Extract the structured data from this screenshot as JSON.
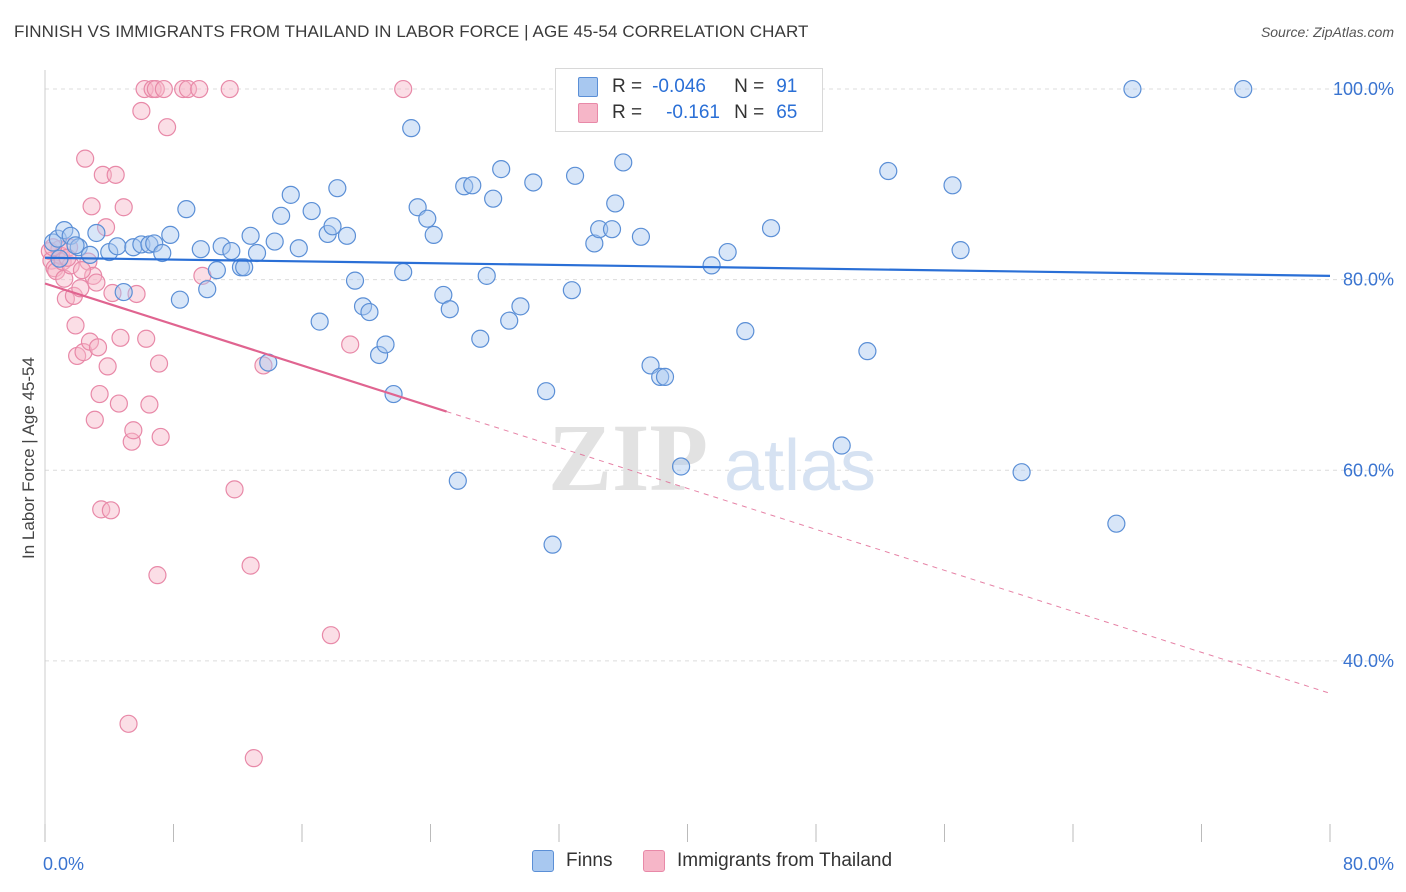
{
  "title": "FINNISH VS IMMIGRANTS FROM THAILAND IN LABOR FORCE | AGE 45-54 CORRELATION CHART",
  "source": "Source: ZipAtlas.com",
  "watermark": {
    "zip": "ZIP",
    "atlas": "atlas"
  },
  "legend": {
    "finns": {
      "r_label": "R =",
      "r_value": "-0.046",
      "n_label": "N =",
      "n_value": "91"
    },
    "thai": {
      "r_label": "R =",
      "r_value": "-0.161",
      "n_label": "N =",
      "n_value": "65"
    }
  },
  "bottom_legend": {
    "finns": "Finns",
    "thai": "Immigrants from Thailand"
  },
  "colors": {
    "finns_fill": "#a8c8f0",
    "finns_stroke": "#5b8fd6",
    "finns_line": "#2a6fd6",
    "thai_fill": "#f6b6c8",
    "thai_stroke": "#e889a8",
    "thai_line": "#e06490",
    "tick_label": "#3a74d0",
    "grid": "#dcdcdc"
  },
  "chart_data": {
    "type": "scatter",
    "xlabel": "",
    "ylabel": "In Labor Force | Age 45-54",
    "xlim": [
      0,
      80
    ],
    "ylim": [
      21,
      102
    ],
    "x_tick_labels": [
      {
        "value": 0,
        "label": "0.0%"
      },
      {
        "value": 80,
        "label": "80.0%"
      }
    ],
    "y_tick_labels": [
      {
        "value": 100,
        "label": "100.0%"
      },
      {
        "value": 80,
        "label": "80.0%"
      },
      {
        "value": 60,
        "label": "60.0%"
      },
      {
        "value": 40,
        "label": "40.0%"
      }
    ],
    "grid": true,
    "series": [
      {
        "name": "Finns",
        "trend": {
          "x0": 0,
          "y0": 82.3,
          "x1": 80,
          "y1": 80.4,
          "dashed_from": null
        },
        "points": [
          [
            0.5,
            83.9
          ],
          [
            0.8,
            84.3
          ],
          [
            1.2,
            85.2
          ],
          [
            1.6,
            84.6
          ],
          [
            2.1,
            83.4
          ],
          [
            2.8,
            82.6
          ],
          [
            3.2,
            84.9
          ],
          [
            4.0,
            82.9
          ],
          [
            4.5,
            83.5
          ],
          [
            4.9,
            78.7
          ],
          [
            5.5,
            83.4
          ],
          [
            6.0,
            83.7
          ],
          [
            6.5,
            83.7
          ],
          [
            6.8,
            83.8
          ],
          [
            7.3,
            82.8
          ],
          [
            7.8,
            84.7
          ],
          [
            8.4,
            77.9
          ],
          [
            8.8,
            87.4
          ],
          [
            9.7,
            83.2
          ],
          [
            10.1,
            79.0
          ],
          [
            10.7,
            81.0
          ],
          [
            11.0,
            83.5
          ],
          [
            11.6,
            83.0
          ],
          [
            12.2,
            81.3
          ],
          [
            12.4,
            81.3
          ],
          [
            12.8,
            84.6
          ],
          [
            13.2,
            82.8
          ],
          [
            13.9,
            71.3
          ],
          [
            14.3,
            84.0
          ],
          [
            14.7,
            86.7
          ],
          [
            15.3,
            88.9
          ],
          [
            15.8,
            83.3
          ],
          [
            16.6,
            87.2
          ],
          [
            17.1,
            75.6
          ],
          [
            17.6,
            84.8
          ],
          [
            17.9,
            85.6
          ],
          [
            18.2,
            89.6
          ],
          [
            18.8,
            84.6
          ],
          [
            19.3,
            79.9
          ],
          [
            19.8,
            77.2
          ],
          [
            20.2,
            76.6
          ],
          [
            20.8,
            72.1
          ],
          [
            21.2,
            73.2
          ],
          [
            21.7,
            68.0
          ],
          [
            22.3,
            80.8
          ],
          [
            22.8,
            95.9
          ],
          [
            23.2,
            87.6
          ],
          [
            23.8,
            86.4
          ],
          [
            24.2,
            84.7
          ],
          [
            24.8,
            78.4
          ],
          [
            25.2,
            76.9
          ],
          [
            25.7,
            58.9
          ],
          [
            26.1,
            89.8
          ],
          [
            26.6,
            89.9
          ],
          [
            27.1,
            73.8
          ],
          [
            27.5,
            80.4
          ],
          [
            27.9,
            88.5
          ],
          [
            28.4,
            91.6
          ],
          [
            28.9,
            75.7
          ],
          [
            29.6,
            77.2
          ],
          [
            30.4,
            90.2
          ],
          [
            31.2,
            68.3
          ],
          [
            31.6,
            52.2
          ],
          [
            32.8,
            78.9
          ],
          [
            33.0,
            90.9
          ],
          [
            34.2,
            83.8
          ],
          [
            34.5,
            85.3
          ],
          [
            35.3,
            85.3
          ],
          [
            35.5,
            88.0
          ],
          [
            36.0,
            92.3
          ],
          [
            37.1,
            84.5
          ],
          [
            37.7,
            71.0
          ],
          [
            38.3,
            69.8
          ],
          [
            38.6,
            69.8
          ],
          [
            39.6,
            60.4
          ],
          [
            41.0,
            100.0
          ],
          [
            41.5,
            81.5
          ],
          [
            42.5,
            82.9
          ],
          [
            43.6,
            74.6
          ],
          [
            45.2,
            85.4
          ],
          [
            49.6,
            62.6
          ],
          [
            51.2,
            72.5
          ],
          [
            52.5,
            91.4
          ],
          [
            56.5,
            89.9
          ],
          [
            57.0,
            83.1
          ],
          [
            60.8,
            59.8
          ],
          [
            66.7,
            54.4
          ],
          [
            67.7,
            100.0
          ],
          [
            74.6,
            100.0
          ],
          [
            0.9,
            82.2
          ],
          [
            1.9,
            83.6
          ]
        ]
      },
      {
        "name": "Immigrants from Thailand",
        "trend": {
          "x0": 0,
          "y0": 79.6,
          "x1": 80,
          "y1": 36.6,
          "dashed_from": 25
        },
        "points": [
          [
            0.3,
            83.0
          ],
          [
            0.4,
            82.0
          ],
          [
            0.6,
            81.2
          ],
          [
            0.7,
            80.9
          ],
          [
            0.9,
            83.2
          ],
          [
            1.0,
            82.5
          ],
          [
            1.1,
            81.9
          ],
          [
            1.2,
            80.1
          ],
          [
            1.3,
            78.0
          ],
          [
            1.5,
            83.4
          ],
          [
            1.6,
            81.5
          ],
          [
            1.8,
            78.3
          ],
          [
            1.9,
            75.2
          ],
          [
            2.0,
            72.0
          ],
          [
            2.2,
            79.1
          ],
          [
            2.4,
            72.4
          ],
          [
            2.5,
            92.7
          ],
          [
            2.7,
            81.9
          ],
          [
            2.8,
            73.5
          ],
          [
            2.9,
            87.7
          ],
          [
            3.0,
            80.4
          ],
          [
            3.1,
            65.3
          ],
          [
            3.2,
            79.7
          ],
          [
            3.3,
            72.9
          ],
          [
            3.4,
            68.0
          ],
          [
            3.5,
            55.9
          ],
          [
            3.6,
            91.0
          ],
          [
            3.8,
            85.5
          ],
          [
            3.9,
            70.9
          ],
          [
            4.1,
            55.8
          ],
          [
            4.2,
            78.6
          ],
          [
            4.4,
            91.0
          ],
          [
            4.6,
            67.0
          ],
          [
            4.7,
            73.9
          ],
          [
            4.9,
            87.6
          ],
          [
            5.2,
            33.4
          ],
          [
            5.4,
            63.0
          ],
          [
            5.5,
            64.2
          ],
          [
            5.7,
            78.5
          ],
          [
            6.0,
            97.7
          ],
          [
            6.2,
            100.0
          ],
          [
            6.3,
            73.8
          ],
          [
            6.5,
            66.9
          ],
          [
            6.7,
            100.0
          ],
          [
            6.9,
            100.0
          ],
          [
            7.0,
            49.0
          ],
          [
            7.1,
            71.2
          ],
          [
            7.2,
            63.5
          ],
          [
            7.4,
            100.0
          ],
          [
            7.6,
            96.0
          ],
          [
            8.6,
            100.0
          ],
          [
            8.9,
            100.0
          ],
          [
            9.6,
            100.0
          ],
          [
            9.8,
            80.4
          ],
          [
            11.5,
            100.0
          ],
          [
            11.8,
            58.0
          ],
          [
            12.8,
            50.0
          ],
          [
            13.0,
            29.8
          ],
          [
            13.6,
            71.0
          ],
          [
            17.8,
            42.7
          ],
          [
            19.0,
            73.2
          ],
          [
            22.3,
            100.0
          ],
          [
            0.5,
            83.4
          ],
          [
            1.4,
            82.3
          ],
          [
            2.3,
            81.0
          ]
        ]
      }
    ]
  }
}
